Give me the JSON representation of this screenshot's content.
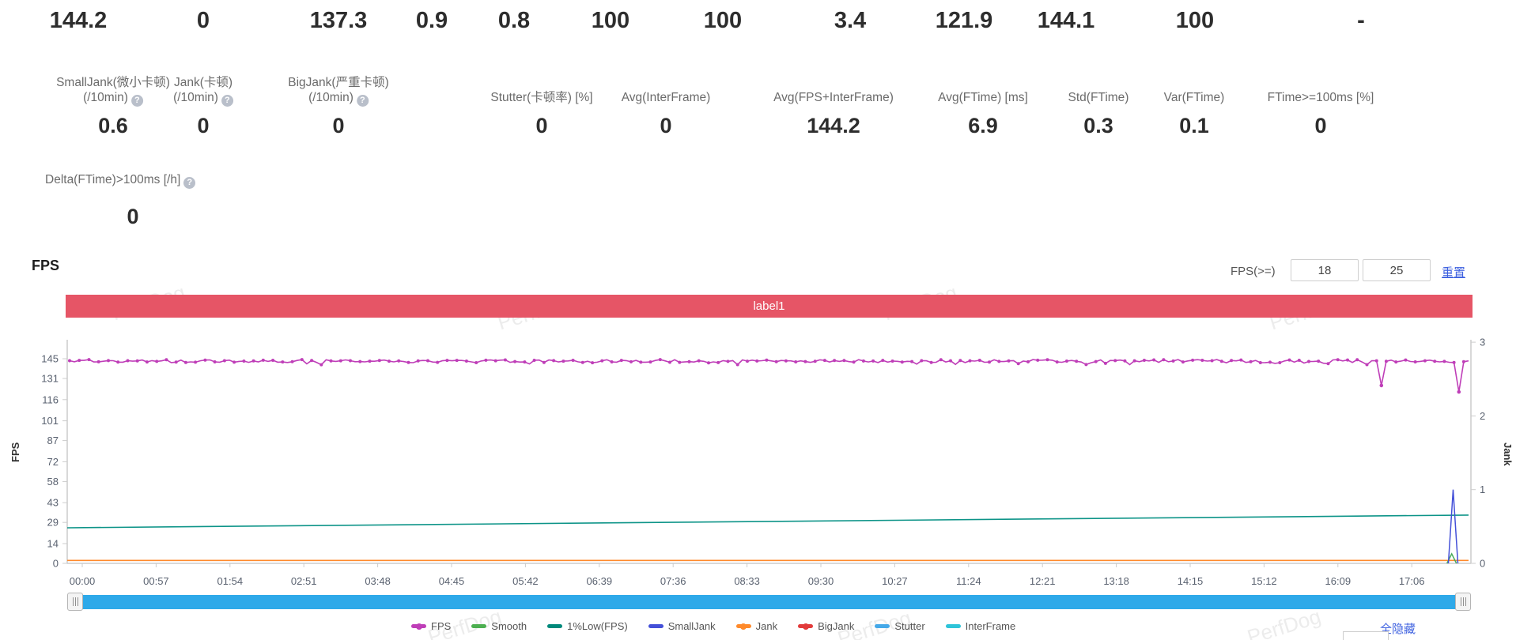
{
  "stats": {
    "help_glyph": "?",
    "row1": [
      "144.2",
      "0",
      "137.3",
      "0.9",
      "0.8",
      "100",
      "100",
      "3.4",
      "121.9",
      "144.1",
      "100",
      "-"
    ],
    "row2": [
      {
        "label_lines": [
          "SmallJank(微小卡顿)",
          "(/10min)"
        ],
        "has_help": true,
        "value": "0.6"
      },
      {
        "label_lines": [
          "Jank(卡顿)",
          "(/10min)"
        ],
        "has_help": true,
        "value": "0"
      },
      {
        "label_lines": [
          "BigJank(严重卡顿)",
          "(/10min)"
        ],
        "has_help": true,
        "value": "0"
      },
      {
        "label_lines": [
          "Stutter(卡顿率) [%]"
        ],
        "has_help": false,
        "value": "0"
      },
      {
        "label_lines": [
          "Avg(InterFrame)"
        ],
        "has_help": false,
        "value": "0"
      },
      {
        "label_lines": [
          "Avg(FPS+InterFrame)"
        ],
        "has_help": false,
        "value": "144.2"
      },
      {
        "label_lines": [
          "Avg(FTime) [ms]"
        ],
        "has_help": false,
        "value": "6.9"
      },
      {
        "label_lines": [
          "Std(FTime)"
        ],
        "has_help": false,
        "value": "0.3"
      },
      {
        "label_lines": [
          "Var(FTime)"
        ],
        "has_help": false,
        "value": "0.1"
      },
      {
        "label_lines": [
          "FTime>=100ms [%]"
        ],
        "has_help": false,
        "value": "0"
      }
    ],
    "delta": {
      "label": "Delta(FTime)>100ms [/h]",
      "has_help": true,
      "value": "0"
    }
  },
  "fps_section": {
    "title": "FPS",
    "filter_label": "FPS(>=)",
    "min_value": "18",
    "max_value": "25",
    "reset_label": "重置",
    "label_bar_text": "label1",
    "label_bar_color": "#e65566"
  },
  "chart_data": {
    "type": "line",
    "title": "FPS",
    "x_ticks": [
      "00:00",
      "00:57",
      "01:54",
      "02:51",
      "03:48",
      "04:45",
      "05:42",
      "06:39",
      "07:36",
      "08:33",
      "09:30",
      "10:27",
      "11:24",
      "12:21",
      "13:18",
      "14:15",
      "15:12",
      "16:09",
      "17:06"
    ],
    "y_left": {
      "label": "FPS",
      "ticks": [
        0,
        14,
        29,
        43,
        58,
        72,
        87,
        101,
        116,
        131,
        145
      ],
      "range": [
        0,
        145
      ]
    },
    "y_right": {
      "label": "Jank",
      "ticks": [
        0,
        1,
        2,
        3
      ],
      "range": [
        0,
        3
      ]
    },
    "grid": false,
    "series": [
      {
        "name": "FPS",
        "axis": "left",
        "color": "#bf3eb8",
        "shape": "noisy",
        "baseline": 143.3,
        "noise": 1.1,
        "dips": [
          {
            "t": 0.936,
            "v": 126
          },
          {
            "t": 0.993,
            "v": 121.5
          }
        ]
      },
      {
        "name": "1%Low(FPS)",
        "axis": "left",
        "color": "#0d9488",
        "shape": "segment",
        "points": [
          [
            0,
            25.2
          ],
          [
            1,
            34.2
          ]
        ]
      },
      {
        "name": "Jank",
        "axis": "right",
        "color": "#ff8a2b",
        "shape": "segment",
        "points": [
          [
            0,
            0.04
          ],
          [
            1,
            0.04
          ]
        ]
      },
      {
        "name": "Smooth",
        "axis": "right",
        "color": "#49aa5c",
        "shape": "spike",
        "t": 0.988,
        "peak": 0.13
      },
      {
        "name": "SmallJank",
        "axis": "right",
        "color": "#4450d8",
        "shape": "spike",
        "t": 0.989,
        "peak": 1.0
      }
    ]
  },
  "legend": {
    "items": [
      {
        "label": "FPS",
        "color": "#bf3eb8",
        "dot": true
      },
      {
        "label": "Smooth",
        "color": "#4caf50",
        "dot": false
      },
      {
        "label": "1%Low(FPS)",
        "color": "#00897b",
        "dot": false
      },
      {
        "label": "SmallJank",
        "color": "#4450d8",
        "dot": false
      },
      {
        "label": "Jank",
        "color": "#ff8a2b",
        "dot": true
      },
      {
        "label": "BigJank",
        "color": "#e23b3b",
        "dot": true
      },
      {
        "label": "Stutter",
        "color": "#45a8e8",
        "dot": false
      },
      {
        "label": "InterFrame",
        "color": "#2ec4d9",
        "dot": false
      }
    ],
    "hide_all_label": "全隐藏"
  },
  "watermark": {
    "text": "PerfDog"
  }
}
